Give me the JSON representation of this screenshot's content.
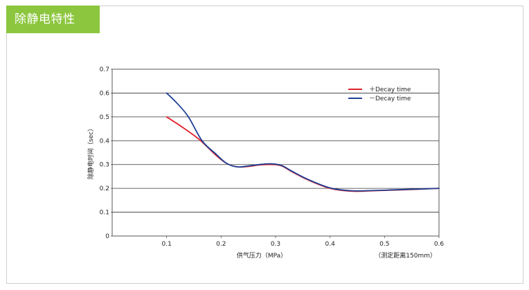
{
  "header": {
    "title": "除静电特性"
  },
  "chart_data": {
    "type": "line",
    "xlabel": "供气压力（MPa）",
    "ylabel": "除静电时间（sec）",
    "note": "（测定距离150mm）",
    "xlim": [
      0,
      0.6
    ],
    "ylim": [
      0,
      0.7
    ],
    "xticks": [
      "0.1",
      "0.2",
      "0.3",
      "0.4",
      "0.5",
      "0.6"
    ],
    "yticks": [
      "0",
      "0.1",
      "0.2",
      "0.3",
      "0.4",
      "0.5",
      "0.6",
      "0.7"
    ],
    "grid": true,
    "legend_position": "top-right",
    "series": [
      {
        "name": "＋Decay time",
        "color": "#e0202a",
        "x": [
          0.1,
          0.13,
          0.16,
          0.19,
          0.21,
          0.23,
          0.25,
          0.27,
          0.29,
          0.31,
          0.33,
          0.36,
          0.4,
          0.44,
          0.48,
          0.52,
          0.56,
          0.6
        ],
        "y": [
          0.5,
          0.455,
          0.405,
          0.34,
          0.305,
          0.29,
          0.292,
          0.298,
          0.3,
          0.295,
          0.27,
          0.235,
          0.2,
          0.188,
          0.19,
          0.193,
          0.196,
          0.2
        ]
      },
      {
        "name": "－Decay time",
        "color": "#1f3f94",
        "x": [
          0.1,
          0.12,
          0.14,
          0.165,
          0.19,
          0.21,
          0.23,
          0.25,
          0.27,
          0.29,
          0.31,
          0.33,
          0.36,
          0.4,
          0.44,
          0.48,
          0.52,
          0.56,
          0.6
        ],
        "y": [
          0.6,
          0.555,
          0.5,
          0.4,
          0.345,
          0.305,
          0.29,
          0.294,
          0.3,
          0.303,
          0.297,
          0.272,
          0.237,
          0.202,
          0.19,
          0.191,
          0.194,
          0.197,
          0.2
        ]
      }
    ]
  }
}
